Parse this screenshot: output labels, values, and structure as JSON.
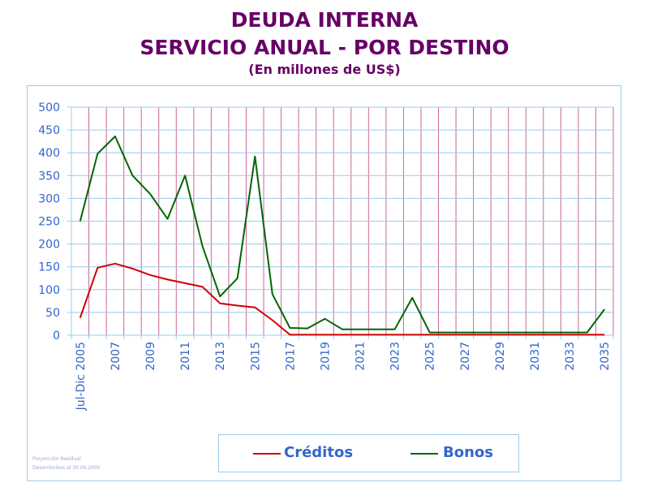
{
  "header": {
    "title_line1": "DEUDA INTERNA",
    "title_line2": "SERVICIO ANUAL - POR DESTINO",
    "subtitle": "(En millones de US$)"
  },
  "footnotes": {
    "line1": "Proyección Residual",
    "line2": "Desembolsos al 30.06.2005"
  },
  "colors": {
    "title": "#660066",
    "axis_text": "#3366cc",
    "grid_h": "#99ccee",
    "grid_v": "#cc6699",
    "creditos": "#cc0000",
    "bonos": "#006600"
  },
  "chart_data": {
    "type": "line",
    "title": "DEUDA INTERNA SERVICIO ANUAL - POR DESTINO",
    "subtitle": "(En millones de US$)",
    "xlabel": "",
    "ylabel": "",
    "ylim": [
      0,
      500
    ],
    "yticks": [
      0,
      50,
      100,
      150,
      200,
      250,
      300,
      350,
      400,
      450,
      500
    ],
    "categories": [
      "Jul-Dic 2005",
      "2006",
      "2007",
      "2008",
      "2009",
      "2010",
      "2011",
      "2012",
      "2013",
      "2014",
      "2015",
      "2016",
      "2017",
      "2018",
      "2019",
      "2020",
      "2021",
      "2022",
      "2023",
      "2024",
      "2025",
      "2026",
      "2027",
      "2028",
      "2029",
      "2030",
      "2031",
      "2032",
      "2033",
      "2034",
      "2035"
    ],
    "x_tick_labels_shown": [
      "Jul-Dic 2005",
      "2007",
      "2009",
      "2011",
      "2013",
      "2015",
      "2017",
      "2019",
      "2021",
      "2023",
      "2025",
      "2027",
      "2029",
      "2031",
      "2033",
      "2035"
    ],
    "grid": true,
    "legend_position": "bottom",
    "series": [
      {
        "name": "Créditos",
        "values": [
          38,
          148,
          157,
          146,
          132,
          122,
          114,
          106,
          70,
          65,
          61,
          33,
          1,
          1,
          1,
          1,
          1,
          1,
          1,
          1,
          1,
          1,
          1,
          1,
          1,
          1,
          1,
          1,
          1,
          1,
          1
        ]
      },
      {
        "name": "Bonos",
        "values": [
          250,
          398,
          436,
          350,
          310,
          255,
          350,
          195,
          85,
          125,
          392,
          90,
          16,
          15,
          36,
          13,
          13,
          13,
          13,
          82,
          6,
          6,
          6,
          6,
          6,
          6,
          6,
          6,
          6,
          6,
          57
        ]
      }
    ]
  }
}
